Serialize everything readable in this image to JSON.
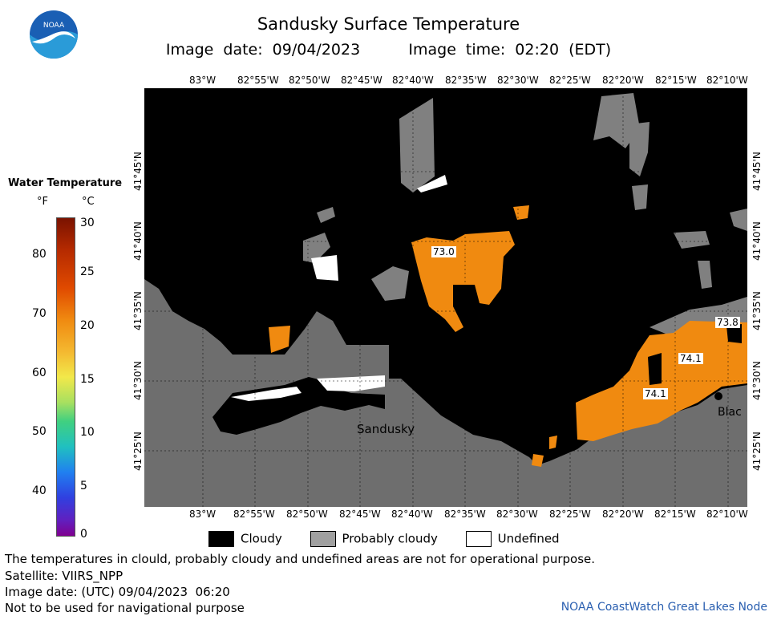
{
  "title": "Sandusky Surface Temperature",
  "subtitle": "Image date: 09/04/2023     Image time: 02:20 (EDT)",
  "logo_text": "NOAA",
  "legend": {
    "title": "Water Temperature",
    "unit_f": "°F",
    "unit_c": "°C",
    "f_ticks": [
      "80",
      "70",
      "60",
      "50",
      "40"
    ],
    "c_ticks": [
      "30",
      "25",
      "20",
      "15",
      "10",
      "5",
      "0"
    ]
  },
  "map": {
    "lon_labels_top": [
      "83°W",
      "82°55'W",
      "82°50'W",
      "82°45'W",
      "82°40'W",
      "82°35'W",
      "82°30'W",
      "82°25'W",
      "82°20'W",
      "82°15'W",
      "82°10'W"
    ],
    "lon_labels_bottom": [
      "83°W",
      "82°55'W",
      "82°50'W",
      "82°45'W",
      "82°40'W",
      "82°35'W",
      "82°30'W",
      "82°25'W",
      "82°20'W",
      "82°15'W",
      "82°10'W"
    ],
    "lat_labels": [
      "41°45'N",
      "41°40'N",
      "41°35'N",
      "41°30'N",
      "41°25'N"
    ],
    "place_labels": [
      "Sandusky",
      "Blac"
    ],
    "temp_labels": [
      "73.0",
      "73.8",
      "74.1",
      "74.1"
    ],
    "colors": {
      "cloud": "#000000",
      "probably_cloudy": "#808080",
      "land": "#6e6e6e",
      "warm_water": "#f08a10",
      "undefined": "#ffffff"
    }
  },
  "key": {
    "cloudy": "Cloudy",
    "probably_cloudy": "Probably cloudy",
    "undefined": "Undefined"
  },
  "footer": {
    "line1": "The temperatures in clould, probably cloudy and undefined areas are not for operational purpose.",
    "line2": "Satellite: VIIRS_NPP",
    "line3": "Image date: (UTC) 09/04/2023  06:20",
    "line4": "Not to be used for navigational purpose",
    "credit": "NOAA CoastWatch Great Lakes Node"
  }
}
